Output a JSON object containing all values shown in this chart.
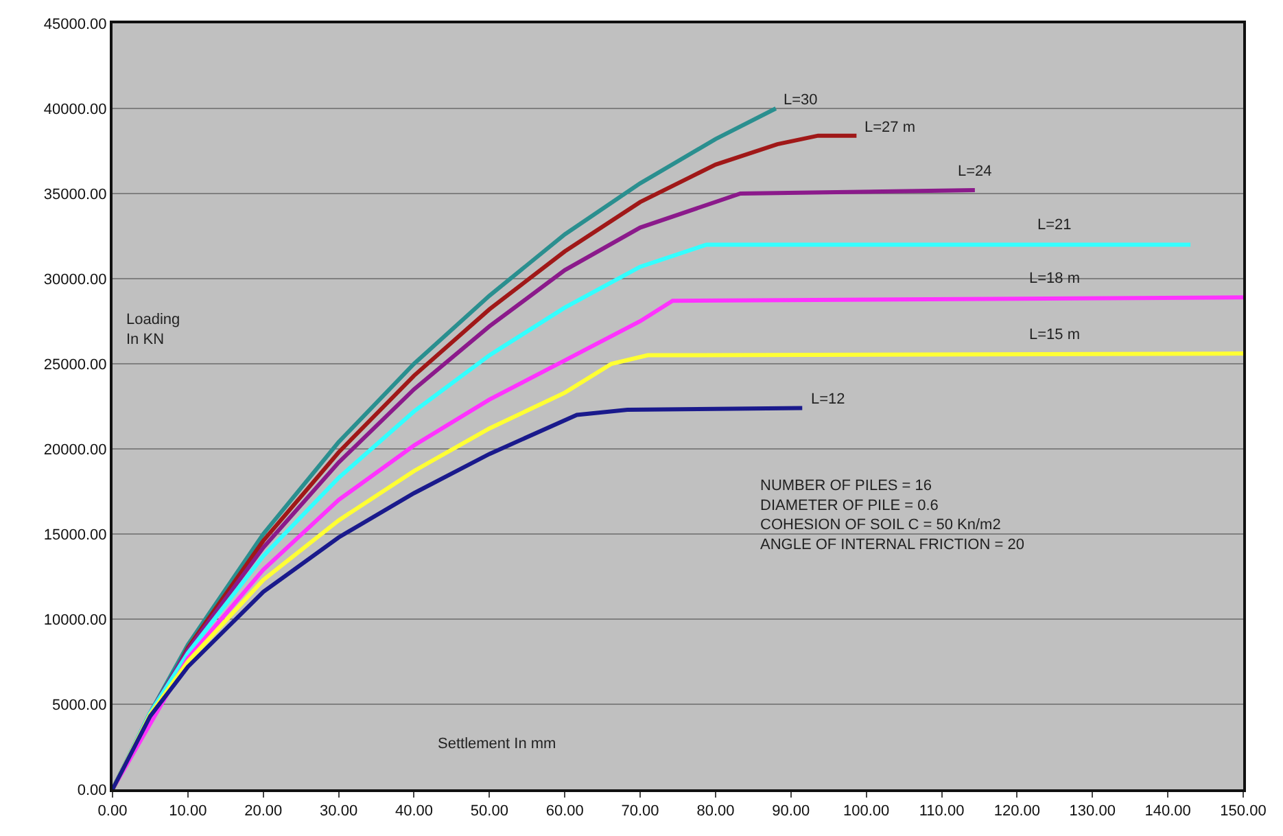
{
  "chart_data": {
    "type": "line",
    "xlabel": "Settlement In mm",
    "ylabel": "Loading\nIn KN",
    "annotations": [
      "NUMBER OF PILES = 16\nDIAMETER OF PILE = 0.6\nCOHESION OF SOIL C = 50 Kn/m2\nANGLE OF INTERNAL FRICTION = 20"
    ],
    "xlim": [
      0,
      150
    ],
    "ylim": [
      0,
      45000
    ],
    "xticks": [
      {
        "value": 0,
        "label": "0.00"
      },
      {
        "value": 10,
        "label": "10.00"
      },
      {
        "value": 20,
        "label": "20.00"
      },
      {
        "value": 30,
        "label": "30.00"
      },
      {
        "value": 40,
        "label": "40.00"
      },
      {
        "value": 50,
        "label": "50.00"
      },
      {
        "value": 60,
        "label": "60.00"
      },
      {
        "value": 70,
        "label": "70.00"
      },
      {
        "value": 80,
        "label": "80.00"
      },
      {
        "value": 90,
        "label": "90.00"
      },
      {
        "value": 100,
        "label": "100.00"
      },
      {
        "value": 110,
        "label": "110.00"
      },
      {
        "value": 120,
        "label": "120.00"
      },
      {
        "value": 130,
        "label": "130.00"
      },
      {
        "value": 140,
        "label": "140.00"
      },
      {
        "value": 150,
        "label": "150.00"
      }
    ],
    "yticks": [
      {
        "value": 0,
        "label": "0.00"
      },
      {
        "value": 5000,
        "label": "5000.00"
      },
      {
        "value": 10000,
        "label": "10000.00"
      },
      {
        "value": 15000,
        "label": "15000.00"
      },
      {
        "value": 20000,
        "label": "20000.00"
      },
      {
        "value": 25000,
        "label": "25000.00"
      },
      {
        "value": 30000,
        "label": "30000.00"
      },
      {
        "value": 35000,
        "label": "35000.00"
      },
      {
        "value": 40000,
        "label": "40000.00"
      },
      {
        "value": 45000,
        "label": "45000.00"
      }
    ],
    "grid": "y",
    "legend": false,
    "marker": "none",
    "line_style": "solid",
    "series": [
      {
        "name": "L=30",
        "color": "#2a8f8f",
        "x": [
          0,
          5,
          10,
          20,
          30,
          40,
          50,
          60,
          70,
          80,
          88
        ],
        "values": [
          0,
          4500,
          8500,
          15000,
          20400,
          25000,
          29000,
          32600,
          35600,
          38200,
          40000
        ]
      },
      {
        "name": "L=27 m",
        "color": "#a01818",
        "x": [
          0,
          10,
          20,
          30,
          40,
          50,
          60,
          70,
          80,
          88.2,
          93.6,
          98.7
        ],
        "values": [
          0,
          8300,
          14600,
          19800,
          24300,
          28200,
          31600,
          34500,
          36700,
          37900,
          38400,
          38400
        ]
      },
      {
        "name": "L=24",
        "color": "#8b1a8b",
        "x": [
          0,
          5,
          10,
          20,
          30,
          40,
          50,
          60,
          70,
          83.3,
          114.4
        ],
        "values": [
          0,
          4500,
          8200,
          14200,
          19200,
          23500,
          27200,
          30500,
          33000,
          35000,
          35200
        ]
      },
      {
        "name": "L=21",
        "color": "#33ffff",
        "x": [
          0,
          5,
          10,
          20,
          30,
          40,
          50,
          60,
          70,
          78.8,
          143
        ],
        "values": [
          0,
          4500,
          8000,
          13700,
          18300,
          22200,
          25500,
          28300,
          30700,
          32000,
          32000
        ]
      },
      {
        "name": "L=18 m",
        "color": "#ff33ff",
        "x": [
          0,
          10,
          20,
          30,
          40,
          50,
          60,
          70,
          74.3,
          150
        ],
        "values": [
          0,
          7700,
          12900,
          17000,
          20200,
          22900,
          25200,
          27500,
          28700,
          28900
        ]
      },
      {
        "name": "L=15 m",
        "color": "#ffff33",
        "x": [
          0,
          5,
          10,
          20,
          30,
          40,
          50,
          60,
          66.2,
          71,
          150
        ],
        "values": [
          0,
          4400,
          7500,
          12300,
          15800,
          18700,
          21200,
          23300,
          25000,
          25500,
          25600
        ]
      },
      {
        "name": "L=12",
        "color": "#1a1a8c",
        "x": [
          0,
          5,
          10,
          20,
          30,
          40,
          50,
          61.6,
          68.3,
          91.5
        ],
        "values": [
          0,
          4300,
          7200,
          11600,
          14800,
          17400,
          19700,
          22000,
          22300,
          22400
        ]
      }
    ]
  }
}
